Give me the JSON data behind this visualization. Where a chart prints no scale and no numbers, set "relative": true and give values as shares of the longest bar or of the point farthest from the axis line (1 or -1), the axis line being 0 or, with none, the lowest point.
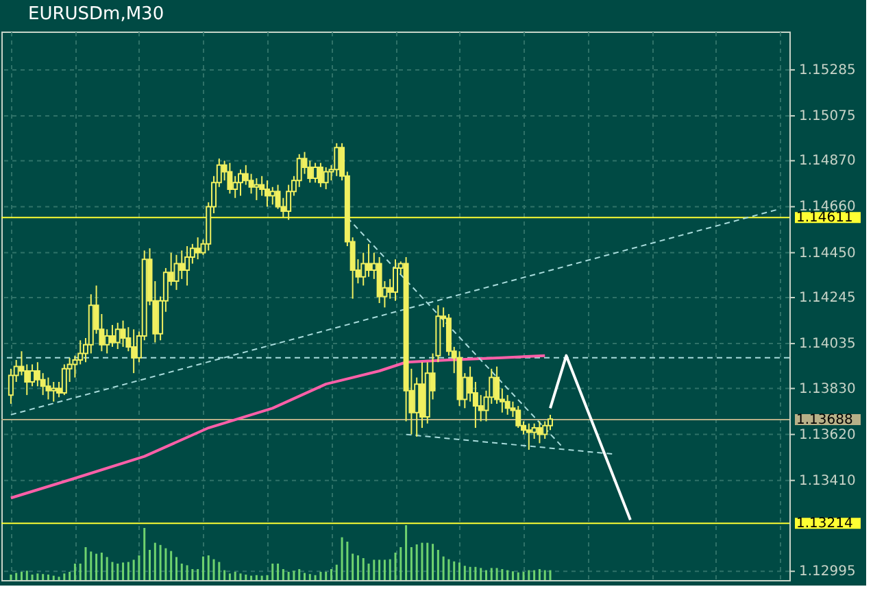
{
  "chart_data": [
    {
      "type": "candlestick",
      "title": "EURUSDm,M30",
      "color": "#f0f060",
      "grid": true,
      "tick_labels": "y",
      "categories": [
        null,
        null,
        null,
        null,
        null,
        null,
        null,
        null,
        null,
        null,
        null,
        null,
        null,
        null,
        null,
        null,
        null,
        null,
        null,
        null,
        null,
        null,
        null,
        null,
        null,
        null,
        null,
        null,
        null,
        null,
        null,
        null,
        null,
        null,
        null,
        null,
        null,
        null,
        null,
        null,
        null,
        null,
        null,
        null,
        null,
        null,
        null,
        null,
        null,
        null,
        null,
        null,
        null,
        null,
        null,
        null,
        null,
        null,
        null,
        null,
        null,
        null,
        null,
        null,
        null,
        null,
        null,
        null,
        null,
        null,
        null,
        null,
        null,
        null,
        null,
        null,
        null,
        null,
        null,
        null,
        null,
        null,
        null,
        null,
        null,
        null,
        null,
        null,
        null,
        null,
        null,
        null,
        null,
        null,
        null,
        null,
        null,
        null,
        null,
        null,
        null,
        null,
        null,
        null,
        null,
        null,
        null,
        null,
        null,
        null,
        null,
        null,
        null,
        null,
        null,
        null,
        null,
        null,
        null,
        null,
        null,
        null,
        null,
        null,
        null,
        null,
        null,
        null,
        null,
        null,
        null,
        null,
        null,
        null,
        null,
        null,
        null,
        null,
        null,
        null,
        null,
        null,
        null,
        null,
        null
      ],
      "ylim": [
        1.12955,
        1.1546
      ],
      "yticks": [
        1.12995,
        {
          "value": 1.1341,
          "label": "1.13410"
        },
        {
          "value": 1.1362,
          "label": "1.13620"
        },
        {
          "value": 1.1383,
          "label": "1.13830"
        },
        1.14035,
        1.14245,
        {
          "value": 1.1445,
          "label": "1.14450"
        },
        {
          "value": 1.1466,
          "label": "1.14660"
        },
        {
          "value": 1.1487,
          "label": "1.14870"
        },
        1.15075,
        1.15285
      ],
      "ohlc": [
        [
          1.138,
          1.1392,
          1.1376,
          1.1389
        ],
        [
          1.1389,
          1.1396,
          1.1386,
          1.1393
        ],
        [
          1.1393,
          1.14,
          1.1389,
          1.1391
        ],
        [
          1.1391,
          1.1394,
          1.138,
          1.1386
        ],
        [
          1.1386,
          1.1394,
          1.1384,
          1.1391
        ],
        [
          1.1391,
          1.1395,
          1.1384,
          1.1387
        ],
        [
          1.1387,
          1.139,
          1.138,
          1.1384
        ],
        [
          1.1384,
          1.1388,
          1.1378,
          1.1382
        ],
        [
          1.1382,
          1.1386,
          1.1377,
          1.1383
        ],
        [
          1.1383,
          1.1386,
          1.1379,
          1.1381
        ],
        [
          1.1381,
          1.1394,
          1.138,
          1.1392
        ],
        [
          1.1392,
          1.1397,
          1.1386,
          1.1394
        ],
        [
          1.1394,
          1.1398,
          1.1388,
          1.1396
        ],
        [
          1.1396,
          1.1405,
          1.1394,
          1.1399
        ],
        [
          1.1399,
          1.1406,
          1.1395,
          1.1403
        ],
        [
          1.1403,
          1.1426,
          1.1399,
          1.1421
        ],
        [
          1.1421,
          1.143,
          1.1408,
          1.141
        ],
        [
          1.141,
          1.1417,
          1.14,
          1.1403
        ],
        [
          1.1403,
          1.141,
          1.1399,
          1.1407
        ],
        [
          1.1407,
          1.1412,
          1.1402,
          1.1404
        ],
        [
          1.1404,
          1.1413,
          1.1401,
          1.141
        ],
        [
          1.141,
          1.1414,
          1.1402,
          1.1406
        ],
        [
          1.1406,
          1.1411,
          1.14,
          1.1402
        ],
        [
          1.1402,
          1.141,
          1.139,
          1.1397
        ],
        [
          1.1397,
          1.1409,
          1.1395,
          1.1407
        ],
        [
          1.1407,
          1.1446,
          1.1405,
          1.1442
        ],
        [
          1.1442,
          1.1447,
          1.1421,
          1.1423
        ],
        [
          1.1423,
          1.1432,
          1.1404,
          1.1408
        ],
        [
          1.1408,
          1.1425,
          1.1405,
          1.1423
        ],
        [
          1.1423,
          1.1438,
          1.1418,
          1.1436
        ],
        [
          1.1436,
          1.1445,
          1.143,
          1.1432
        ],
        [
          1.1432,
          1.1444,
          1.1428,
          1.144
        ],
        [
          1.144,
          1.1446,
          1.1433,
          1.1437
        ],
        [
          1.1437,
          1.1448,
          1.143,
          1.1443
        ],
        [
          1.1443,
          1.1449,
          1.144,
          1.1447
        ],
        [
          1.1447,
          1.1452,
          1.1442,
          1.1445
        ],
        [
          1.1445,
          1.1451,
          1.1444,
          1.1449
        ],
        [
          1.1449,
          1.1468,
          1.1446,
          1.1466
        ],
        [
          1.1466,
          1.148,
          1.1463,
          1.1477
        ],
        [
          1.1477,
          1.1488,
          1.1475,
          1.1485
        ],
        [
          1.1485,
          1.1487,
          1.1478,
          1.1482
        ],
        [
          1.1482,
          1.1486,
          1.1472,
          1.1474
        ],
        [
          1.1474,
          1.148,
          1.147,
          1.1477
        ],
        [
          1.1477,
          1.1483,
          1.1471,
          1.1481
        ],
        [
          1.1481,
          1.1485,
          1.1476,
          1.1478
        ],
        [
          1.1478,
          1.1481,
          1.1472,
          1.1475
        ],
        [
          1.1475,
          1.1479,
          1.1469,
          1.1476
        ],
        [
          1.1476,
          1.148,
          1.1471,
          1.1474
        ],
        [
          1.1474,
          1.1478,
          1.1466,
          1.1471
        ],
        [
          1.1471,
          1.1475,
          1.1467,
          1.1473
        ],
        [
          1.1473,
          1.1476,
          1.1465,
          1.1466
        ],
        [
          1.1466,
          1.147,
          1.1461,
          1.1464
        ],
        [
          1.1464,
          1.1476,
          1.146,
          1.1473
        ],
        [
          1.1473,
          1.148,
          1.1471,
          1.1478
        ],
        [
          1.1478,
          1.149,
          1.1475,
          1.1488
        ],
        [
          1.1488,
          1.1491,
          1.1481,
          1.1484
        ],
        [
          1.1484,
          1.1487,
          1.1477,
          1.1479
        ],
        [
          1.1479,
          1.1486,
          1.1477,
          1.1484
        ],
        [
          1.1484,
          1.1486,
          1.1475,
          1.1477
        ],
        [
          1.1477,
          1.1484,
          1.1474,
          1.1482
        ],
        [
          1.1482,
          1.1485,
          1.1478,
          1.1483
        ],
        [
          1.1483,
          1.1495,
          1.148,
          1.1493
        ],
        [
          1.1493,
          1.1495,
          1.1478,
          1.148
        ],
        [
          1.148,
          1.1482,
          1.1448,
          1.145
        ],
        [
          1.145,
          1.1452,
          1.1424,
          1.1437
        ],
        [
          1.1437,
          1.1442,
          1.1431,
          1.1434
        ],
        [
          1.1434,
          1.1445,
          1.143,
          1.144
        ],
        [
          1.144,
          1.1449,
          1.1434,
          1.1437
        ],
        [
          1.1437,
          1.1445,
          1.1433,
          1.144
        ],
        [
          1.144,
          1.1443,
          1.1422,
          1.1425
        ],
        [
          1.1425,
          1.1432,
          1.142,
          1.1429
        ],
        [
          1.1429,
          1.1433,
          1.1424,
          1.1427
        ],
        [
          1.1427,
          1.1442,
          1.1423,
          1.1438
        ],
        [
          1.1438,
          1.1441,
          1.1435,
          1.144
        ],
        [
          1.144,
          1.1443,
          1.1368,
          1.1382
        ],
        [
          1.1382,
          1.1392,
          1.1362,
          1.1372
        ],
        [
          1.1372,
          1.1388,
          1.1361,
          1.1385
        ],
        [
          1.1385,
          1.1395,
          1.1365,
          1.137
        ],
        [
          1.137,
          1.1395,
          1.1367,
          1.139
        ],
        [
          1.139,
          1.1399,
          1.1378,
          1.1382
        ],
        [
          1.1398,
          1.1421,
          1.1395,
          1.1416
        ],
        [
          1.1416,
          1.142,
          1.1411,
          1.1415
        ],
        [
          1.1415,
          1.1417,
          1.1398,
          1.14
        ],
        [
          1.14,
          1.1402,
          1.139,
          1.1397
        ],
        [
          1.1397,
          1.14,
          1.1375,
          1.1378
        ],
        [
          1.1378,
          1.139,
          1.1374,
          1.1388
        ],
        [
          1.1388,
          1.1393,
          1.1377,
          1.1381
        ],
        [
          1.1381,
          1.1386,
          1.1365,
          1.1375
        ],
        [
          1.1375,
          1.138,
          1.1368,
          1.1373
        ],
        [
          1.1373,
          1.1382,
          1.1368,
          1.1379
        ],
        [
          1.1379,
          1.1392,
          1.1376,
          1.1388
        ],
        [
          1.1388,
          1.1393,
          1.1376,
          1.1378
        ],
        [
          1.1378,
          1.1383,
          1.1372,
          1.1377
        ],
        [
          1.1377,
          1.138,
          1.1371,
          1.1374
        ],
        [
          1.1374,
          1.1377,
          1.137,
          1.1373
        ],
        [
          1.1373,
          1.1375,
          1.1365,
          1.1366
        ],
        [
          1.1366,
          1.1368,
          1.1362,
          1.1364
        ],
        [
          1.1364,
          1.1367,
          1.1355,
          1.1363
        ],
        [
          1.1363,
          1.1367,
          1.136,
          1.1365
        ],
        [
          1.1365,
          1.1368,
          1.1358,
          1.1362
        ],
        [
          1.1362,
          1.1368,
          1.136,
          1.1366
        ],
        [
          1.1366,
          1.1371,
          1.1364,
          1.1369
        ],
        null,
        null,
        null,
        null,
        null,
        null,
        null,
        null,
        null,
        null,
        null,
        null,
        null,
        null,
        null,
        null,
        null,
        null,
        null,
        null,
        null,
        null,
        null,
        null,
        null,
        null,
        null,
        null,
        null,
        null,
        null,
        null,
        null,
        null,
        null,
        null,
        null,
        null,
        null,
        null,
        null,
        null,
        null
      ],
      "series": [
        {
          "type": "line",
          "color": "#ff5fa8",
          "line_style": "solid",
          "values": [
            1.1333,
            null,
            null,
            null,
            null,
            null,
            null,
            null,
            null,
            null,
            null,
            null,
            1.1342,
            null,
            null,
            null,
            null,
            null,
            null,
            null,
            null,
            null,
            null,
            null,
            null,
            1.1352,
            null,
            null,
            null,
            null,
            null,
            null,
            null,
            null,
            null,
            null,
            null,
            1.1365,
            null,
            null,
            null,
            null,
            null,
            null,
            null,
            null,
            null,
            null,
            null,
            1.1374,
            null,
            null,
            null,
            null,
            null,
            null,
            null,
            null,
            null,
            1.1385,
            null,
            null,
            null,
            null,
            null,
            null,
            null,
            null,
            null,
            1.1391,
            null,
            null,
            null,
            null,
            1.1395,
            null,
            null,
            null,
            null,
            null,
            null,
            null,
            1.1396,
            null,
            null,
            null,
            null,
            null,
            null,
            null,
            null,
            null,
            1.1397,
            null,
            null,
            null,
            null,
            null,
            null,
            null,
            1.1398,
            null,
            null,
            null,
            null,
            null,
            null,
            null,
            null,
            null,
            null,
            null,
            null,
            null,
            null,
            null,
            null,
            null,
            null,
            null,
            null,
            null,
            null,
            null,
            null,
            null,
            null,
            null,
            null,
            null,
            null,
            null,
            null,
            null,
            null,
            null,
            null,
            null,
            null,
            null,
            null,
            null,
            null,
            null,
            null
          ]
        },
        {
          "type": "line",
          "color": "#a8dcdc",
          "line_style": "dashed",
          "values": [
            1.1371,
            null,
            null,
            null,
            null,
            null,
            null,
            null,
            null,
            null,
            null,
            null,
            null,
            null,
            null,
            null,
            null,
            null,
            null,
            null,
            null,
            null,
            null,
            null,
            null,
            null,
            null,
            null,
            null,
            null,
            null,
            null,
            null,
            null,
            null,
            null,
            null,
            null,
            null,
            null,
            null,
            null,
            null,
            null,
            null,
            null,
            null,
            null,
            null,
            null,
            null,
            null,
            null,
            null,
            null,
            null,
            null,
            null,
            null,
            null,
            null,
            null,
            null,
            null,
            null,
            null,
            null,
            null,
            null,
            null,
            null,
            null,
            null,
            null,
            null,
            null,
            null,
            null,
            null,
            null,
            null,
            null,
            null,
            null,
            null,
            null,
            null,
            null,
            null,
            null,
            null,
            null,
            null,
            null,
            null,
            null,
            null,
            null,
            null,
            null,
            null,
            null,
            null,
            null,
            null,
            null,
            null,
            null,
            null,
            null,
            null,
            null,
            null,
            null,
            null,
            null,
            null,
            null,
            null,
            null,
            null,
            null,
            null,
            null,
            null,
            null,
            null,
            null,
            null,
            null,
            null,
            null,
            null,
            null,
            null,
            null,
            null,
            null,
            null,
            null,
            null,
            null,
            null,
            null,
            1.1465
          ]
        },
        {
          "type": "line",
          "color": "#a8dcdc",
          "line_style": "dashed",
          "values": [
            null,
            null,
            null,
            null,
            null,
            null,
            null,
            null,
            null,
            null,
            null,
            null,
            null,
            null,
            null,
            null,
            null,
            null,
            null,
            null,
            null,
            null,
            null,
            null,
            null,
            null,
            null,
            null,
            null,
            null,
            null,
            null,
            null,
            null,
            null,
            null,
            null,
            null,
            null,
            null,
            null,
            null,
            null,
            null,
            null,
            null,
            null,
            null,
            null,
            null,
            null,
            null,
            null,
            null,
            null,
            null,
            null,
            null,
            null,
            null,
            null,
            null,
            null,
            1.1461,
            null,
            null,
            null,
            null,
            null,
            null,
            null,
            null,
            null,
            null,
            null,
            null,
            null,
            null,
            null,
            null,
            null,
            null,
            null,
            null,
            null,
            null,
            null,
            null,
            null,
            null,
            null,
            null,
            null,
            null,
            null,
            null,
            null,
            null,
            null,
            null,
            null,
            null,
            null,
            1.1357,
            null,
            null,
            null,
            null,
            null,
            null,
            null,
            null,
            null,
            null,
            null,
            null,
            null,
            null,
            null,
            null,
            null,
            null,
            null,
            null,
            null,
            null,
            null,
            null,
            null,
            null,
            null,
            null,
            null,
            null,
            null,
            null,
            null,
            null,
            null,
            null,
            null,
            null,
            null,
            null,
            null
          ]
        },
        {
          "type": "line",
          "color": "#a8dcdc",
          "line_style": "dashed",
          "values": [
            null,
            null,
            null,
            null,
            null,
            null,
            null,
            null,
            null,
            null,
            null,
            null,
            null,
            null,
            null,
            null,
            null,
            null,
            null,
            null,
            null,
            null,
            null,
            null,
            null,
            null,
            null,
            null,
            null,
            null,
            null,
            null,
            null,
            null,
            null,
            null,
            null,
            null,
            null,
            null,
            null,
            null,
            null,
            null,
            null,
            null,
            null,
            null,
            null,
            null,
            null,
            null,
            null,
            null,
            null,
            null,
            null,
            null,
            null,
            null,
            null,
            null,
            null,
            null,
            null,
            null,
            null,
            null,
            null,
            null,
            null,
            null,
            null,
            null,
            1.1362,
            null,
            null,
            null,
            null,
            null,
            null,
            null,
            null,
            null,
            null,
            null,
            null,
            null,
            null,
            null,
            null,
            null,
            null,
            null,
            null,
            null,
            null,
            null,
            null,
            null,
            null,
            null,
            null,
            null,
            null,
            null,
            null,
            null,
            null,
            null,
            null,
            null,
            null,
            1.1353,
            null,
            null,
            null,
            null,
            null,
            null,
            null,
            null,
            null,
            null,
            null,
            null,
            null,
            null,
            null,
            null,
            null,
            null,
            null,
            null,
            null,
            null,
            null,
            null,
            null,
            null,
            null,
            null,
            null,
            null,
            null
          ]
        },
        {
          "type": "line",
          "color": "#ffffff",
          "line_style": "solid",
          "values": [
            null,
            null,
            null,
            null,
            null,
            null,
            null,
            null,
            null,
            null,
            null,
            null,
            null,
            null,
            null,
            null,
            null,
            null,
            null,
            null,
            null,
            null,
            null,
            null,
            null,
            null,
            null,
            null,
            null,
            null,
            null,
            null,
            null,
            null,
            null,
            null,
            null,
            null,
            null,
            null,
            null,
            null,
            null,
            null,
            null,
            null,
            null,
            null,
            null,
            null,
            null,
            null,
            null,
            null,
            null,
            null,
            null,
            null,
            null,
            null,
            null,
            null,
            null,
            null,
            null,
            null,
            null,
            null,
            null,
            null,
            null,
            null,
            null,
            null,
            null,
            null,
            null,
            null,
            null,
            null,
            null,
            null,
            null,
            null,
            null,
            null,
            null,
            null,
            null,
            null,
            null,
            null,
            null,
            null,
            null,
            null,
            null,
            null,
            null,
            null,
            null,
            1.1374,
            null,
            null,
            1.1398,
            null,
            null,
            null,
            null,
            null,
            null,
            null,
            null,
            null,
            null,
            null,
            1.1323,
            null,
            null,
            null,
            null,
            null,
            null,
            null,
            null,
            null,
            null,
            null,
            null,
            null,
            null,
            null,
            null,
            null,
            null,
            null,
            null,
            null,
            null,
            null,
            null,
            null,
            null,
            null,
            null
          ]
        }
      ],
      "ref_lines": [
        {
          "axis": "y",
          "value": 1.14611,
          "label": "1.14611",
          "color": "#ffff33"
        },
        {
          "axis": "y",
          "value": 1.13214,
          "label": "1.13214",
          "color": "#ffff33"
        },
        {
          "axis": "y",
          "value": 1.13688,
          "label": "1.13688",
          "color": "#b8b088"
        },
        {
          "axis": "y",
          "value": 1.1397,
          "color": "#a8dcdc",
          "line_style": "dashed"
        }
      ]
    },
    {
      "type": "bar",
      "relative": true,
      "color": "#6fd36f",
      "categories": [
        null,
        null,
        null,
        null,
        null,
        null,
        null,
        null,
        null,
        null,
        null,
        null,
        null,
        null,
        null,
        null,
        null,
        null,
        null,
        null,
        null,
        null,
        null,
        null,
        null,
        null,
        null,
        null,
        null,
        null,
        null,
        null,
        null,
        null,
        null,
        null,
        null,
        null,
        null,
        null,
        null,
        null,
        null,
        null,
        null,
        null,
        null,
        null,
        null,
        null,
        null,
        null,
        null,
        null,
        null,
        null,
        null,
        null,
        null,
        null,
        null,
        null,
        null,
        null,
        null,
        null,
        null,
        null,
        null,
        null,
        null,
        null,
        null,
        null,
        null,
        null,
        null,
        null,
        null,
        null,
        null,
        null,
        null,
        null,
        null,
        null,
        null,
        null,
        null,
        null,
        null,
        null,
        null,
        null,
        null,
        null,
        null,
        null,
        null,
        null,
        null,
        null,
        null,
        null,
        null,
        null,
        null,
        null,
        null,
        null,
        null,
        null,
        null,
        null,
        null,
        null,
        null,
        null,
        null,
        null,
        null,
        null,
        null,
        null,
        null,
        null,
        null,
        null,
        null,
        null,
        null,
        null,
        null,
        null,
        null,
        null,
        null,
        null,
        null,
        null,
        null,
        null,
        null,
        null,
        null
      ],
      "values": [
        0.1,
        0.13,
        0.15,
        0.17,
        0.1,
        0.12,
        0.11,
        0.1,
        0.08,
        0.06,
        0.12,
        0.15,
        0.3,
        0.3,
        0.6,
        0.52,
        0.48,
        0.5,
        0.42,
        0.33,
        0.3,
        0.32,
        0.33,
        0.37,
        0.45,
        0.95,
        0.55,
        0.68,
        0.64,
        0.58,
        0.53,
        0.42,
        0.3,
        0.27,
        0.2,
        0.2,
        0.43,
        0.45,
        0.38,
        0.33,
        0.18,
        0.12,
        0.15,
        0.12,
        0.1,
        0.08,
        0.09,
        0.08,
        0.09,
        0.3,
        0.3,
        0.2,
        0.15,
        0.17,
        0.2,
        0.13,
        0.11,
        0.09,
        0.15,
        0.15,
        0.2,
        0.28,
        0.78,
        0.7,
        0.48,
        0.45,
        0.4,
        0.3,
        0.37,
        0.37,
        0.37,
        0.38,
        0.5,
        0.6,
        1.0,
        0.6,
        0.65,
        0.68,
        0.68,
        0.66,
        0.55,
        0.43,
        0.38,
        0.34,
        0.32,
        0.26,
        0.24,
        0.24,
        0.22,
        0.18,
        0.22,
        0.22,
        0.2,
        0.18,
        0.16,
        0.14,
        0.15,
        0.18,
        0.18,
        0.2,
        0.18,
        0.18,
        null,
        null,
        null,
        null,
        null,
        null,
        null,
        null,
        null,
        null,
        null,
        null,
        null,
        null,
        null,
        null,
        null,
        null,
        null,
        null,
        null,
        null,
        null,
        null,
        null,
        null,
        null,
        null,
        null,
        null,
        null,
        null,
        null,
        null,
        null,
        null,
        null,
        null,
        null,
        null,
        null,
        null,
        null
      ]
    }
  ]
}
